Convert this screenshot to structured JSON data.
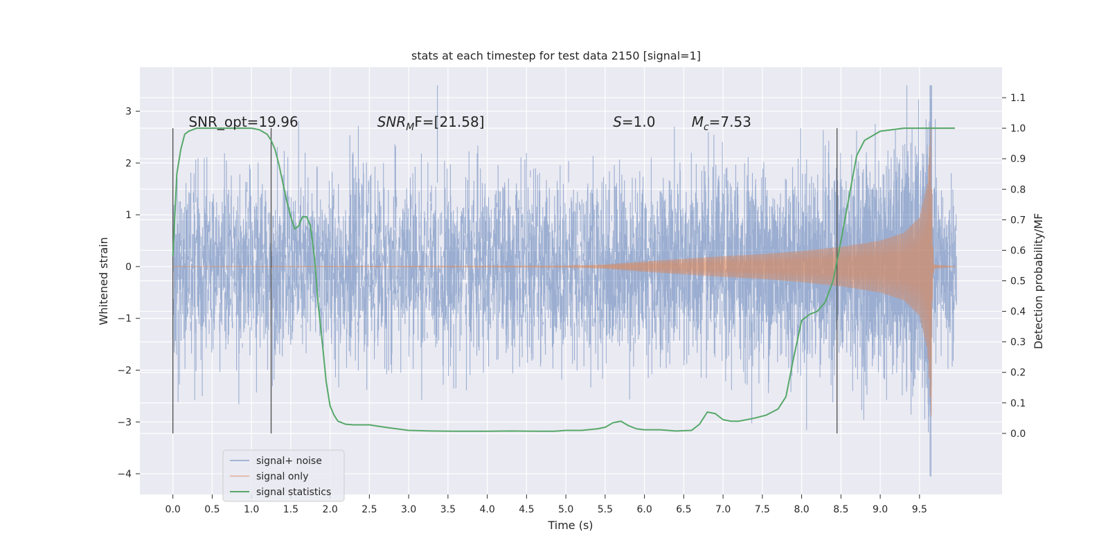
{
  "chart_data": {
    "type": "line",
    "title": "stats at each timestep for test data 2150 [signal=1]",
    "xlabel": "Time (s)",
    "ylabel_left": "Whitened strain",
    "ylabel_right": "Detection probability/MF",
    "xlim": [
      -0.42,
      10.55
    ],
    "ylim_left": [
      -4.4,
      3.85
    ],
    "ylim_right": [
      -0.2,
      1.2
    ],
    "x_ticks": [
      0.0,
      0.5,
      1.0,
      1.5,
      2.0,
      2.5,
      3.0,
      3.5,
      4.0,
      4.5,
      5.0,
      5.5,
      6.0,
      6.5,
      7.0,
      7.5,
      8.0,
      8.5,
      9.0,
      9.5
    ],
    "x_tick_labels": [
      "0.0",
      "0.5",
      "1.0",
      "1.5",
      "2.0",
      "2.5",
      "3.0",
      "3.5",
      "4.0",
      "4.5",
      "5.0",
      "5.5",
      "6.0",
      "6.5",
      "7.0",
      "7.5",
      "8.0",
      "8.5",
      "9.0",
      "9.5"
    ],
    "y_left_ticks": [
      -4,
      -3,
      -2,
      -1,
      0,
      1,
      2,
      3
    ],
    "y_left_tick_labels": [
      "−4",
      "−3",
      "−2",
      "−1",
      "0",
      "1",
      "2",
      "3"
    ],
    "y_right_ticks": [
      0.0,
      0.1,
      0.2,
      0.3,
      0.4,
      0.5,
      0.6,
      0.7,
      0.8,
      0.9,
      1.0,
      1.1
    ],
    "y_right_tick_labels": [
      "0.0",
      "0.1",
      "0.2",
      "0.3",
      "0.4",
      "0.5",
      "0.6",
      "0.7",
      "0.8",
      "0.9",
      "1.0",
      "1.1"
    ],
    "grid": true,
    "legend_position": "lower-left",
    "annotations": [
      {
        "text": "SNR_opt=19.96",
        "x": 0.2,
        "y_right": 1.0
      },
      {
        "text_main": "SNR",
        "text_sub": "M",
        "text_rest": "F=[21.58]",
        "x": 2.6,
        "y_right": 1.0
      },
      {
        "text_main": "S",
        "text_rest": "=1.0",
        "x": 5.6,
        "y_right": 1.0
      },
      {
        "text_main": "M",
        "text_sub": "c",
        "text_rest": "=7.53",
        "x": 6.6,
        "y_right": 1.0
      }
    ],
    "vertical_lines": [
      {
        "x": 0.0,
        "y_right": [
          0.0,
          1.0
        ]
      },
      {
        "x": 1.25,
        "y_right": [
          0.0,
          1.0
        ]
      },
      {
        "x": 8.45,
        "y_right": [
          0.0,
          1.0
        ]
      }
    ],
    "series": [
      {
        "name": "signal+ noise",
        "color": "#4c72b0",
        "axis": "left",
        "description_amplitude": "gaussian noise, typical envelope about ±1.5, peaks reaching about ±3.5",
        "x_range": [
          0.0,
          9.97
        ],
        "sample_peaks": {
          "max": 3.5,
          "min": -4.05
        }
      },
      {
        "name": "signal only",
        "color": "#dd8452",
        "axis": "left",
        "envelope": {
          "x": [
            0.0,
            5.0,
            5.5,
            6.0,
            6.5,
            7.0,
            7.5,
            8.0,
            8.5,
            9.0,
            9.3,
            9.5,
            9.6,
            9.65,
            9.66,
            9.68,
            9.75,
            9.97
          ],
          "amp": [
            0.0,
            0.01,
            0.04,
            0.1,
            0.15,
            0.2,
            0.24,
            0.3,
            0.38,
            0.5,
            0.65,
            0.95,
            1.6,
            2.9,
            0.8,
            0.05,
            0.02,
            0.0
          ]
        }
      },
      {
        "name": "signal statistics",
        "color": "#55a868",
        "axis": "right",
        "x": [
          0.0,
          0.05,
          0.1,
          0.15,
          0.2,
          0.3,
          0.5,
          0.8,
          1.0,
          1.1,
          1.2,
          1.25,
          1.3,
          1.35,
          1.4,
          1.45,
          1.5,
          1.55,
          1.6,
          1.65,
          1.7,
          1.75,
          1.8,
          1.85,
          1.9,
          1.95,
          2.0,
          2.05,
          2.1,
          2.2,
          2.3,
          2.5,
          2.7,
          3.0,
          3.3,
          3.6,
          4.0,
          4.3,
          4.7,
          4.85,
          5.0,
          5.2,
          5.4,
          5.5,
          5.6,
          5.7,
          5.8,
          5.9,
          6.0,
          6.2,
          6.4,
          6.6,
          6.7,
          6.8,
          6.9,
          7.0,
          7.1,
          7.2,
          7.4,
          7.55,
          7.7,
          7.8,
          7.9,
          8.0,
          8.1,
          8.2,
          8.3,
          8.4,
          8.5,
          8.6,
          8.7,
          8.8,
          9.0,
          9.3,
          9.6,
          9.8,
          9.95
        ],
        "values": [
          0.58,
          0.85,
          0.93,
          0.98,
          0.99,
          1.0,
          1.0,
          1.0,
          1.0,
          0.995,
          0.98,
          0.96,
          0.93,
          0.88,
          0.82,
          0.76,
          0.71,
          0.67,
          0.68,
          0.71,
          0.71,
          0.68,
          0.58,
          0.42,
          0.3,
          0.17,
          0.09,
          0.06,
          0.04,
          0.03,
          0.028,
          0.028,
          0.02,
          0.01,
          0.008,
          0.007,
          0.007,
          0.008,
          0.007,
          0.007,
          0.01,
          0.01,
          0.015,
          0.02,
          0.035,
          0.04,
          0.025,
          0.015,
          0.012,
          0.012,
          0.008,
          0.01,
          0.03,
          0.07,
          0.065,
          0.045,
          0.04,
          0.04,
          0.05,
          0.06,
          0.08,
          0.12,
          0.25,
          0.37,
          0.39,
          0.4,
          0.43,
          0.5,
          0.63,
          0.77,
          0.91,
          0.96,
          0.99,
          1.0,
          1.0,
          1.0,
          1.0
        ]
      }
    ]
  }
}
